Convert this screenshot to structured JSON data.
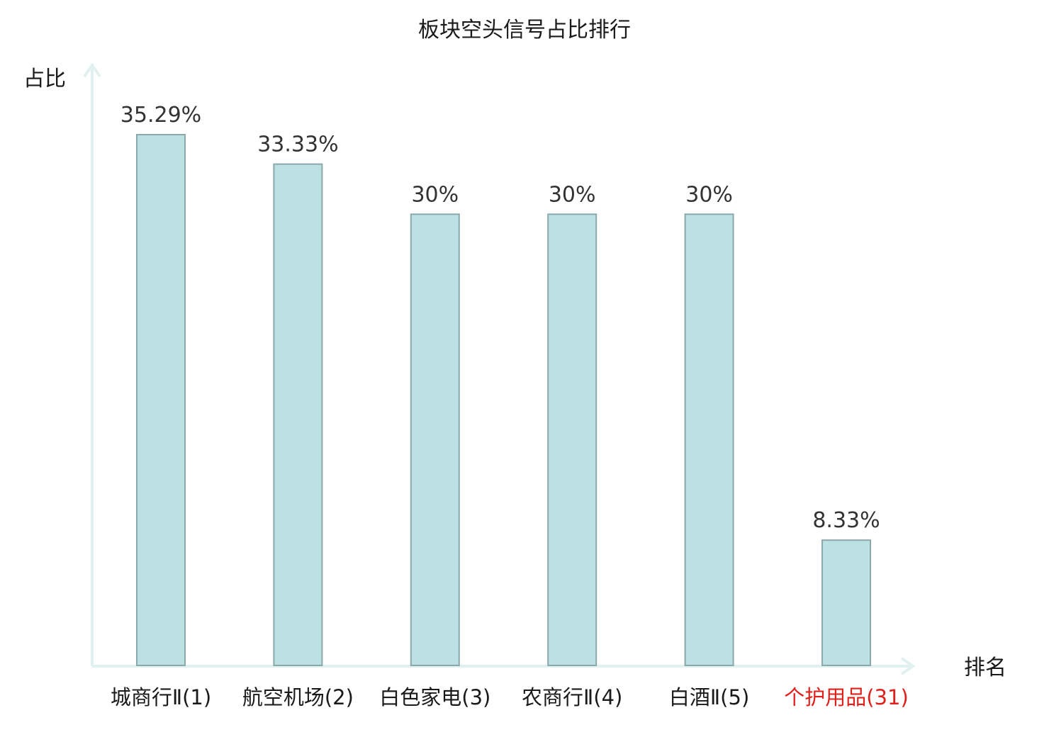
{
  "chart_data": {
    "type": "bar",
    "title": "板块空头信号占比排行",
    "ylabel": "占比",
    "xlabel": "排名",
    "categories": [
      "城商行Ⅱ(1)",
      "航空机场(2)",
      "白色家电(3)",
      "农商行Ⅱ(4)",
      "白酒Ⅱ(5)",
      "个护用品(31)"
    ],
    "values": [
      35.29,
      33.33,
      30,
      30,
      30,
      8.33
    ],
    "value_labels": [
      "35.29%",
      "33.33%",
      "30%",
      "30%",
      "30%",
      "8.33%"
    ],
    "highlight_index": 5,
    "ylim": [
      0,
      38
    ],
    "grid": false,
    "colors": {
      "bar_fill": "#bde0e3",
      "bar_stroke": "#8aa9aa",
      "axis": "#e0f1ef",
      "category_text": "#1a1a1a",
      "highlight_text": "#e0201b"
    }
  }
}
